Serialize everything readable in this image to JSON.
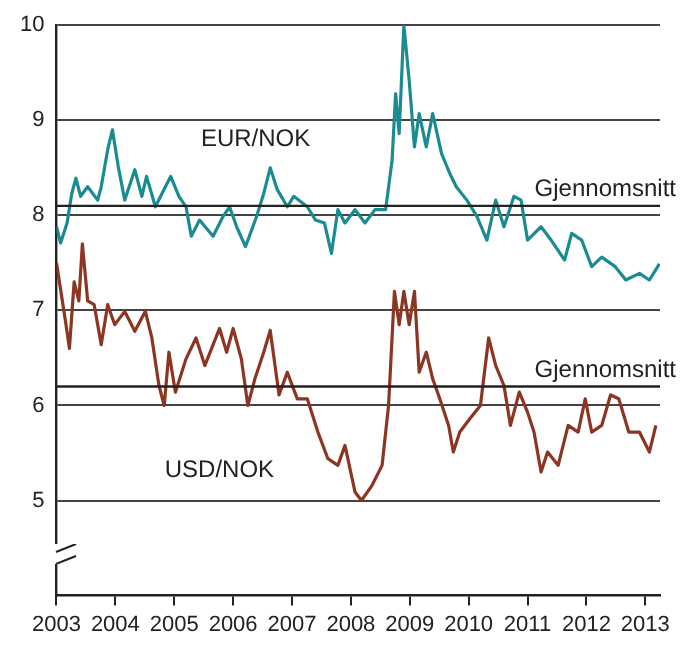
{
  "chart_data": {
    "type": "line",
    "xlim": [
      2003,
      2013.25
    ],
    "xticks": [
      2003,
      2004,
      2005,
      2006,
      2007,
      2008,
      2009,
      2010,
      2011,
      2012,
      2013
    ],
    "ylim": [
      4,
      10
    ],
    "yticks": [
      5,
      6,
      7,
      8,
      9,
      10
    ],
    "grid": "y",
    "marker": "none",
    "ref_lines": [
      {
        "axis": "y",
        "value": 8.1,
        "label": "Gjennomsnitt"
      },
      {
        "axis": "y",
        "value": 6.2,
        "label": "Gjennomsnitt"
      }
    ],
    "series": [
      {
        "name": "EUR/NOK",
        "color": "#1a8c91",
        "x": [
          2003.0,
          2003.07,
          2003.18,
          2003.26,
          2003.33,
          2003.41,
          2003.53,
          2003.7,
          2003.76,
          2003.87,
          2003.95,
          2004.05,
          2004.16,
          2004.33,
          2004.45,
          2004.53,
          2004.68,
          2004.85,
          2004.94,
          2005.08,
          2005.2,
          2005.29,
          2005.43,
          2005.66,
          2005.83,
          2005.94,
          2006.06,
          2006.21,
          2006.4,
          2006.52,
          2006.63,
          2006.75,
          2006.92,
          2007.03,
          2007.26,
          2007.4,
          2007.55,
          2007.67,
          2007.78,
          2007.9,
          2008.07,
          2008.24,
          2008.41,
          2008.59,
          2008.7,
          2008.76,
          2008.82,
          2008.9,
          2008.99,
          2009.08,
          2009.16,
          2009.28,
          2009.39,
          2009.54,
          2009.68,
          2009.79,
          2009.97,
          2010.14,
          2010.31,
          2010.46,
          2010.6,
          2010.77,
          2010.89,
          2011.0,
          2011.23,
          2011.4,
          2011.63,
          2011.75,
          2011.92,
          2012.09,
          2012.26,
          2012.49,
          2012.67,
          2012.9,
          2013.07,
          2013.24
        ],
        "values": [
          7.88,
          7.71,
          7.92,
          8.23,
          8.39,
          8.2,
          8.3,
          8.16,
          8.3,
          8.69,
          8.9,
          8.51,
          8.16,
          8.48,
          8.2,
          8.41,
          8.09,
          8.3,
          8.41,
          8.2,
          8.09,
          7.78,
          7.95,
          7.78,
          7.99,
          8.09,
          7.88,
          7.67,
          7.99,
          8.23,
          8.5,
          8.27,
          8.09,
          8.2,
          8.09,
          7.95,
          7.92,
          7.6,
          8.06,
          7.92,
          8.06,
          7.92,
          8.06,
          8.06,
          8.58,
          9.28,
          8.86,
          10.0,
          9.42,
          8.72,
          9.07,
          8.72,
          9.07,
          8.65,
          8.44,
          8.3,
          8.16,
          7.99,
          7.74,
          8.16,
          7.88,
          8.2,
          8.16,
          7.74,
          7.88,
          7.74,
          7.53,
          7.81,
          7.74,
          7.46,
          7.56,
          7.46,
          7.32,
          7.39,
          7.32,
          7.49
        ]
      },
      {
        "name": "USD/NOK",
        "color": "#8b3522",
        "x": [
          2003.0,
          2003.15,
          2003.22,
          2003.3,
          2003.38,
          2003.44,
          2003.53,
          2003.64,
          2003.76,
          2003.87,
          2003.99,
          2004.16,
          2004.33,
          2004.51,
          2004.62,
          2004.74,
          2004.83,
          2004.91,
          2005.02,
          2005.2,
          2005.37,
          2005.52,
          2005.66,
          2005.77,
          2005.89,
          2006.0,
          2006.14,
          2006.25,
          2006.37,
          2006.52,
          2006.63,
          2006.78,
          2006.92,
          2007.09,
          2007.26,
          2007.44,
          2007.61,
          2007.78,
          2007.9,
          2008.07,
          2008.18,
          2008.36,
          2008.53,
          2008.64,
          2008.74,
          2008.82,
          2008.9,
          2008.99,
          2009.08,
          2009.16,
          2009.28,
          2009.39,
          2009.51,
          2009.66,
          2009.74,
          2009.85,
          2010.02,
          2010.2,
          2010.34,
          2010.46,
          2010.6,
          2010.71,
          2010.86,
          2011.0,
          2011.11,
          2011.23,
          2011.34,
          2011.52,
          2011.69,
          2011.86,
          2011.98,
          2012.09,
          2012.26,
          2012.41,
          2012.55,
          2012.72,
          2012.9,
          2013.07,
          2013.18
        ],
        "values": [
          7.5,
          6.9,
          6.6,
          7.3,
          7.1,
          7.7,
          7.1,
          7.06,
          6.64,
          7.06,
          6.85,
          6.99,
          6.78,
          6.99,
          6.71,
          6.21,
          6.0,
          6.56,
          6.14,
          6.49,
          6.71,
          6.42,
          6.64,
          6.81,
          6.56,
          6.81,
          6.49,
          6.0,
          6.28,
          6.56,
          6.79,
          6.11,
          6.35,
          6.07,
          6.07,
          5.72,
          5.44,
          5.37,
          5.58,
          5.09,
          5.0,
          5.16,
          5.37,
          6.0,
          7.2,
          6.85,
          7.2,
          6.85,
          7.2,
          6.35,
          6.56,
          6.28,
          6.07,
          5.79,
          5.51,
          5.72,
          5.86,
          6.0,
          6.71,
          6.42,
          6.21,
          5.79,
          6.14,
          5.93,
          5.72,
          5.3,
          5.51,
          5.37,
          5.79,
          5.72,
          6.07,
          5.72,
          5.79,
          6.11,
          6.07,
          5.72,
          5.72,
          5.51,
          5.79
        ]
      }
    ]
  }
}
